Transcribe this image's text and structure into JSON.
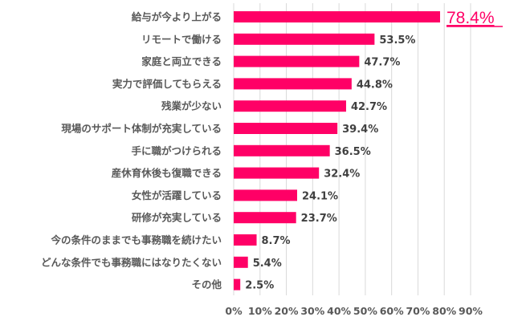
{
  "chart_data": {
    "type": "bar",
    "orientation": "horizontal",
    "categories": [
      "給与が今より上がる",
      "リモートで働ける",
      "家庭と両立できる",
      "実力で評価してもらえる",
      "残業が少ない",
      "現場のサポート体制が充実している",
      "手に職がつけられる",
      "産休育休後も復職できる",
      "女性が活躍している",
      "研修が充実している",
      "今の条件のままでも事務職を続けたい",
      "どんな条件でも事務職にはなりたくない",
      "その他"
    ],
    "values": [
      78.4,
      53.5,
      47.7,
      44.8,
      42.7,
      39.4,
      36.5,
      32.4,
      24.1,
      23.7,
      8.7,
      5.4,
      2.5
    ],
    "value_labels": [
      "78.4%",
      "53.5%",
      "47.7%",
      "44.8%",
      "42.7%",
      "39.4%",
      "36.5%",
      "32.4%",
      "24.1%",
      "23.7%",
      "8.7%",
      "5.4%",
      "2.5%"
    ],
    "xlim": [
      0,
      90
    ],
    "xticks": [
      "0%",
      "10%",
      "20%",
      "30%",
      "40%",
      "50%",
      "60%",
      "70%",
      "80%",
      "90%"
    ],
    "grid": true,
    "bar_color": "#FF0066",
    "highlight_label_color": "#FF0066",
    "label_color": "#595959"
  }
}
